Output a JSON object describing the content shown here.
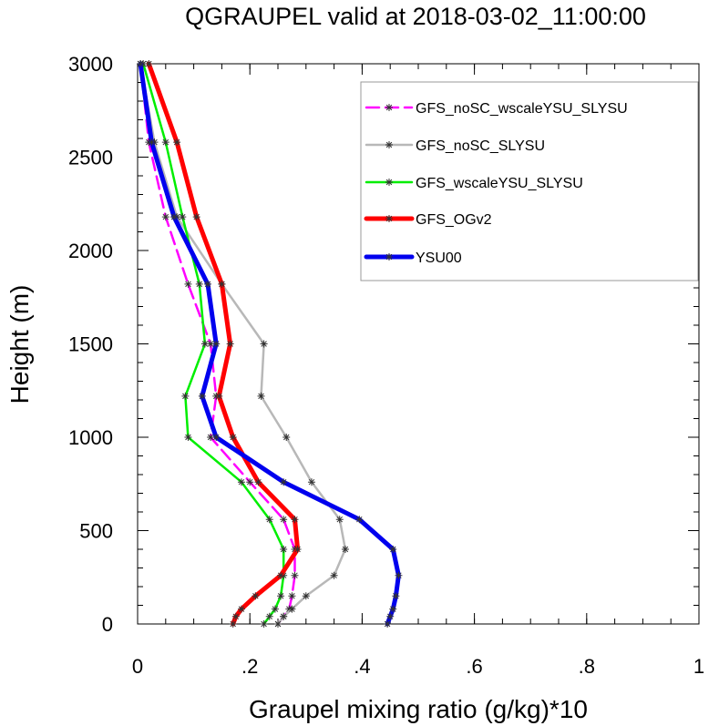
{
  "chart_data": {
    "type": "line",
    "title": "QGRAUPEL valid at 2018-03-02_11:00:00",
    "xlabel": "Graupel mixing ratio (g/kg)*10",
    "ylabel": "Height (m)",
    "xlim": [
      0,
      1
    ],
    "ylim": [
      0,
      3000
    ],
    "xticks": [
      {
        "value": 0,
        "label": "0"
      },
      {
        "value": 0.2,
        "label": ".2"
      },
      {
        "value": 0.4,
        "label": ".4"
      },
      {
        "value": 0.6,
        "label": ".6"
      },
      {
        "value": 0.8,
        "label": ".8"
      },
      {
        "value": 1,
        "label": "1"
      }
    ],
    "yticks": [
      {
        "value": 0,
        "label": "0"
      },
      {
        "value": 500,
        "label": "500"
      },
      {
        "value": 1000,
        "label": "1000"
      },
      {
        "value": 1500,
        "label": "1500"
      },
      {
        "value": 2000,
        "label": "2000"
      },
      {
        "value": 2500,
        "label": "2500"
      },
      {
        "value": 3000,
        "label": "3000"
      }
    ],
    "legend_position": "top-right",
    "grid": false,
    "series": [
      {
        "name": "GFS_noSC_wscaleYSU_SLYSU",
        "color": "#ff00ff",
        "dash": "dashed",
        "width": 2.5,
        "points": [
          [
            0.25,
            0
          ],
          [
            0.26,
            40
          ],
          [
            0.27,
            80
          ],
          [
            0.275,
            150
          ],
          [
            0.28,
            260
          ],
          [
            0.28,
            400
          ],
          [
            0.26,
            560
          ],
          [
            0.2,
            760
          ],
          [
            0.13,
            1000
          ],
          [
            0.14,
            1220
          ],
          [
            0.13,
            1500
          ],
          [
            0.09,
            1820
          ],
          [
            0.05,
            2180
          ],
          [
            0.02,
            2580
          ],
          [
            0.005,
            3000
          ]
        ]
      },
      {
        "name": "GFS_noSC_SLYSU",
        "color": "#b8b8b8",
        "dash": "solid",
        "width": 2.5,
        "points": [
          [
            0.25,
            0
          ],
          [
            0.26,
            40
          ],
          [
            0.275,
            80
          ],
          [
            0.3,
            150
          ],
          [
            0.35,
            260
          ],
          [
            0.37,
            400
          ],
          [
            0.36,
            560
          ],
          [
            0.31,
            760
          ],
          [
            0.265,
            1000
          ],
          [
            0.22,
            1220
          ],
          [
            0.225,
            1500
          ],
          [
            0.15,
            1820
          ],
          [
            0.07,
            2180
          ],
          [
            0.03,
            2580
          ],
          [
            0.005,
            3000
          ]
        ]
      },
      {
        "name": "GFS_wscaleYSU_SLYSU",
        "color": "#00ee00",
        "dash": "solid",
        "width": 2.5,
        "points": [
          [
            0.225,
            0
          ],
          [
            0.235,
            40
          ],
          [
            0.245,
            80
          ],
          [
            0.255,
            150
          ],
          [
            0.26,
            260
          ],
          [
            0.26,
            400
          ],
          [
            0.235,
            560
          ],
          [
            0.185,
            760
          ],
          [
            0.09,
            1000
          ],
          [
            0.085,
            1220
          ],
          [
            0.12,
            1500
          ],
          [
            0.11,
            1820
          ],
          [
            0.08,
            2180
          ],
          [
            0.05,
            2580
          ],
          [
            0.01,
            3000
          ]
        ]
      },
      {
        "name": "GFS_OGv2",
        "color": "#ff0000",
        "dash": "solid",
        "width": 5,
        "points": [
          [
            0.17,
            0
          ],
          [
            0.175,
            40
          ],
          [
            0.185,
            80
          ],
          [
            0.21,
            150
          ],
          [
            0.255,
            260
          ],
          [
            0.285,
            400
          ],
          [
            0.28,
            560
          ],
          [
            0.215,
            760
          ],
          [
            0.17,
            1000
          ],
          [
            0.145,
            1220
          ],
          [
            0.165,
            1500
          ],
          [
            0.15,
            1820
          ],
          [
            0.105,
            2180
          ],
          [
            0.07,
            2580
          ],
          [
            0.02,
            3000
          ]
        ]
      },
      {
        "name": "YSU00",
        "color": "#0000ee",
        "dash": "solid",
        "width": 5,
        "points": [
          [
            0.445,
            0
          ],
          [
            0.45,
            40
          ],
          [
            0.455,
            80
          ],
          [
            0.46,
            150
          ],
          [
            0.465,
            260
          ],
          [
            0.455,
            400
          ],
          [
            0.395,
            560
          ],
          [
            0.26,
            760
          ],
          [
            0.14,
            1000
          ],
          [
            0.115,
            1220
          ],
          [
            0.14,
            1500
          ],
          [
            0.125,
            1820
          ],
          [
            0.065,
            2180
          ],
          [
            0.025,
            2580
          ],
          [
            0.005,
            3000
          ]
        ]
      }
    ]
  }
}
